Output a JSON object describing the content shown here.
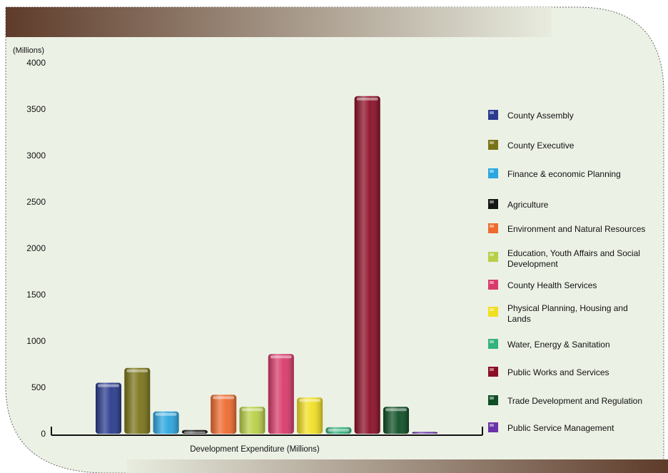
{
  "colors": {
    "panel": "#ecf1e5",
    "band_dark": "#5e3b2a",
    "band_light": "#e8ecdf",
    "axis": "#111111"
  },
  "chart_data": {
    "type": "bar",
    "ylabel": "(Millions)",
    "xlabel": "Development Expenditure (Millions)",
    "ylim": [
      0,
      4000
    ],
    "yticks": [
      0,
      500,
      1000,
      1500,
      2000,
      2500,
      3000,
      3500,
      4000
    ],
    "grid": false,
    "legend_position": "right",
    "series": [
      {
        "name": "County Assembly",
        "value": 550,
        "color": "#2a3a8e"
      },
      {
        "name": "County Executive",
        "value": 710,
        "color": "#7a7418"
      },
      {
        "name": "Finance & economic Planning",
        "value": 240,
        "color": "#2aa6e0"
      },
      {
        "name": "Agriculture",
        "value": 40,
        "color": "#151515"
      },
      {
        "name": "Environment and Natural Resources",
        "value": 420,
        "color": "#ef6a2f"
      },
      {
        "name": "Education, Youth Affairs and Social Development",
        "value": 290,
        "color": "#b8cf47"
      },
      {
        "name": "County Health Services",
        "value": 860,
        "color": "#d93a6c"
      },
      {
        "name": "Physical Planning, Housing and Lands",
        "value": 390,
        "color": "#f1df22"
      },
      {
        "name": "Water, Energy & Sanitation",
        "value": 70,
        "color": "#34b27e"
      },
      {
        "name": "Public Works and Services",
        "value": 3640,
        "color": "#8b0e26"
      },
      {
        "name": "Trade Development and Regulation",
        "value": 290,
        "color": "#0e4e25"
      },
      {
        "name": "Public Service Management",
        "value": 20,
        "color": "#6a33a8"
      }
    ]
  }
}
